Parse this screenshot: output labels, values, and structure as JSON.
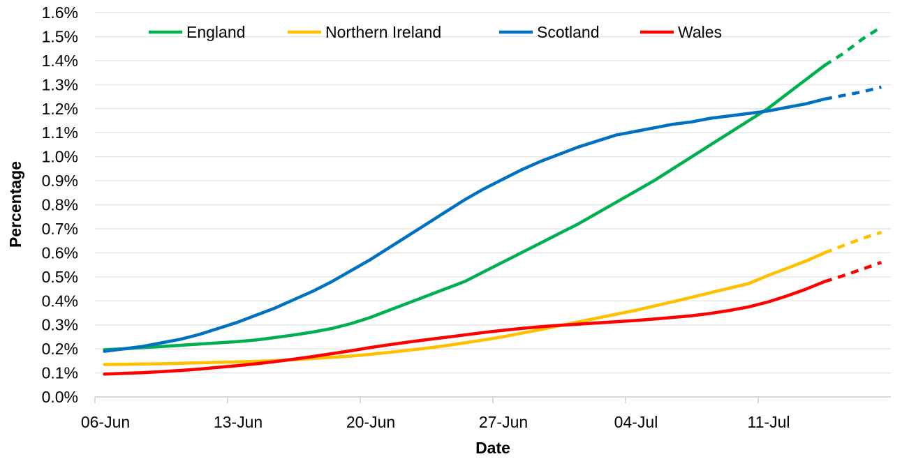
{
  "chart_data": {
    "type": "line",
    "title": "",
    "xlabel": "Date",
    "ylabel": "Percentage",
    "ylim": [
      0,
      1.6
    ],
    "y_ticks": [
      "0.0%",
      "0.1%",
      "0.2%",
      "0.3%",
      "0.4%",
      "0.5%",
      "0.6%",
      "0.7%",
      "0.8%",
      "0.9%",
      "1.0%",
      "1.1%",
      "1.2%",
      "1.3%",
      "1.4%",
      "1.5%",
      "1.6%"
    ],
    "x_tick_labels": [
      "06-Jun",
      "13-Jun",
      "20-Jun",
      "27-Jun",
      "04-Jul",
      "11-Jul"
    ],
    "x": [
      "06-Jun",
      "07-Jun",
      "08-Jun",
      "09-Jun",
      "10-Jun",
      "11-Jun",
      "12-Jun",
      "13-Jun",
      "14-Jun",
      "15-Jun",
      "16-Jun",
      "17-Jun",
      "18-Jun",
      "19-Jun",
      "20-Jun",
      "21-Jun",
      "22-Jun",
      "23-Jun",
      "24-Jun",
      "25-Jun",
      "26-Jun",
      "27-Jun",
      "28-Jun",
      "29-Jun",
      "30-Jun",
      "01-Jul",
      "02-Jul",
      "03-Jul",
      "04-Jul",
      "05-Jul",
      "06-Jul",
      "07-Jul",
      "08-Jul",
      "09-Jul",
      "10-Jul",
      "11-Jul",
      "12-Jul",
      "13-Jul",
      "14-Jul",
      "15-Jul",
      "16-Jul",
      "17-Jul"
    ],
    "projection_starts_at": "14-Jul",
    "grid": true,
    "legend_position": "top",
    "series": [
      {
        "name": "England",
        "color": "#00b050",
        "values": [
          0.197,
          0.2,
          0.205,
          0.21,
          0.215,
          0.22,
          0.225,
          0.23,
          0.237,
          0.247,
          0.258,
          0.27,
          0.285,
          0.305,
          0.33,
          0.36,
          0.39,
          0.42,
          0.45,
          0.48,
          0.52,
          0.56,
          0.6,
          0.64,
          0.68,
          0.72,
          0.765,
          0.81,
          0.855,
          0.9,
          0.95,
          1.0,
          1.05,
          1.1,
          1.15,
          1.2,
          1.26,
          1.32,
          1.38,
          1.43,
          1.49,
          1.54
        ]
      },
      {
        "name": "Northern Ireland",
        "color": "#ffc000",
        "values": [
          0.135,
          0.136,
          0.137,
          0.138,
          0.14,
          0.142,
          0.144,
          0.146,
          0.148,
          0.151,
          0.155,
          0.16,
          0.165,
          0.17,
          0.177,
          0.185,
          0.194,
          0.203,
          0.213,
          0.225,
          0.237,
          0.25,
          0.265,
          0.28,
          0.296,
          0.312,
          0.328,
          0.344,
          0.36,
          0.378,
          0.396,
          0.415,
          0.434,
          0.453,
          0.472,
          0.505,
          0.535,
          0.565,
          0.6,
          0.63,
          0.66,
          0.685
        ]
      },
      {
        "name": "Scotland",
        "color": "#0070c0",
        "values": [
          0.19,
          0.2,
          0.21,
          0.225,
          0.24,
          0.26,
          0.285,
          0.31,
          0.34,
          0.37,
          0.405,
          0.44,
          0.48,
          0.525,
          0.57,
          0.62,
          0.67,
          0.72,
          0.77,
          0.82,
          0.865,
          0.905,
          0.945,
          0.98,
          1.01,
          1.04,
          1.065,
          1.09,
          1.105,
          1.12,
          1.135,
          1.145,
          1.16,
          1.17,
          1.18,
          1.19,
          1.205,
          1.22,
          1.24,
          1.255,
          1.27,
          1.29
        ]
      },
      {
        "name": "Wales",
        "color": "#ff0000",
        "values": [
          0.095,
          0.098,
          0.101,
          0.105,
          0.11,
          0.116,
          0.123,
          0.13,
          0.138,
          0.147,
          0.157,
          0.168,
          0.18,
          0.192,
          0.205,
          0.217,
          0.228,
          0.238,
          0.248,
          0.258,
          0.268,
          0.277,
          0.285,
          0.292,
          0.298,
          0.303,
          0.308,
          0.313,
          0.318,
          0.324,
          0.331,
          0.338,
          0.348,
          0.36,
          0.375,
          0.395,
          0.42,
          0.448,
          0.48,
          0.505,
          0.532,
          0.56
        ]
      }
    ]
  }
}
